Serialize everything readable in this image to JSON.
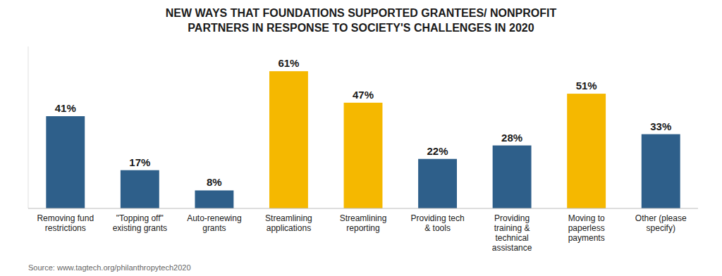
{
  "chart_data": {
    "type": "bar",
    "title": "NEW WAYS THAT FOUNDATIONS SUPPORTED GRANTEES/ NONPROFIT\nPARTNERS IN RESPONSE TO SOCIETY'S CHALLENGES IN 2020",
    "categories": [
      "Removing fund\nrestrictions",
      "\"Topping off\"\nexisting grants",
      "Auto-renewing\ngrants",
      "Streamlining\napplications",
      "Streamlining\nreporting",
      "Providing tech\n& tools",
      "Providing\ntraining &\ntechnical\nassistance",
      "Moving to\npaperless\npayments",
      "Other (please\nspecify)"
    ],
    "values": [
      41,
      17,
      8,
      61,
      47,
      22,
      28,
      51,
      33
    ],
    "value_labels": [
      "41%",
      "17%",
      "8%",
      "61%",
      "47%",
      "22%",
      "28%",
      "51%",
      "33%"
    ],
    "colors": [
      "#2E5F8A",
      "#2E5F8A",
      "#2E5F8A",
      "#F5B800",
      "#F5B800",
      "#2E5F8A",
      "#2E5F8A",
      "#F5B800",
      "#2E5F8A"
    ],
    "ylim": [
      0,
      72
    ],
    "data_labels": true,
    "tick_labels": "x",
    "grid": false,
    "annotations": [
      "Source: www.tagtech.org/philanthropytech2020"
    ]
  }
}
